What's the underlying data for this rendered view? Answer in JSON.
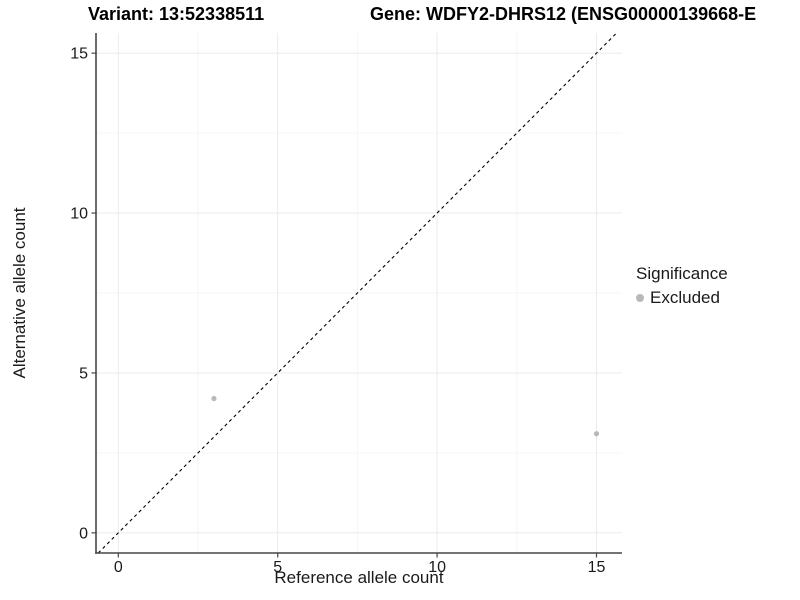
{
  "titles": {
    "variant": "Variant: 13:52338511",
    "gene": "Gene: WDFY2-DHRS12 (ENSG00000139668-E"
  },
  "legend": {
    "title": "Significance",
    "items": [
      {
        "label": "Excluded",
        "color": "#b8b8b8"
      }
    ]
  },
  "chart_data": {
    "type": "scatter",
    "title": "Variant: 13:52338511 — Gene: WDFY2-DHRS12 (ENSG00000139668-E…)",
    "xlabel": "Reference allele count",
    "ylabel": "Alternative allele count",
    "xlim": [
      -0.7,
      15.8
    ],
    "ylim": [
      -0.63,
      15.63
    ],
    "x_ticks": [
      0,
      5,
      10,
      15
    ],
    "y_ticks": [
      0,
      5,
      10,
      15
    ],
    "x_minor_ticks": [
      2.5,
      7.5,
      12.5
    ],
    "y_minor_ticks": [
      2.5,
      7.5,
      12.5
    ],
    "grid": true,
    "legend_position": "right",
    "identity_line": {
      "slope": 1,
      "intercept": 0,
      "style": "dashed",
      "color": "#000000"
    },
    "series": [
      {
        "name": "Excluded",
        "color": "#b8b8b8",
        "points": [
          {
            "x": 3,
            "y": 4.2
          },
          {
            "x": 15,
            "y": 3.1
          }
        ]
      }
    ],
    "styles": {
      "grid_major_color": "#ebebeb",
      "grid_minor_color": "#f5f5f5",
      "axis_line_color": "#464646",
      "tick_label_color": "#1a1a1a",
      "point_radius": 2.6
    }
  }
}
